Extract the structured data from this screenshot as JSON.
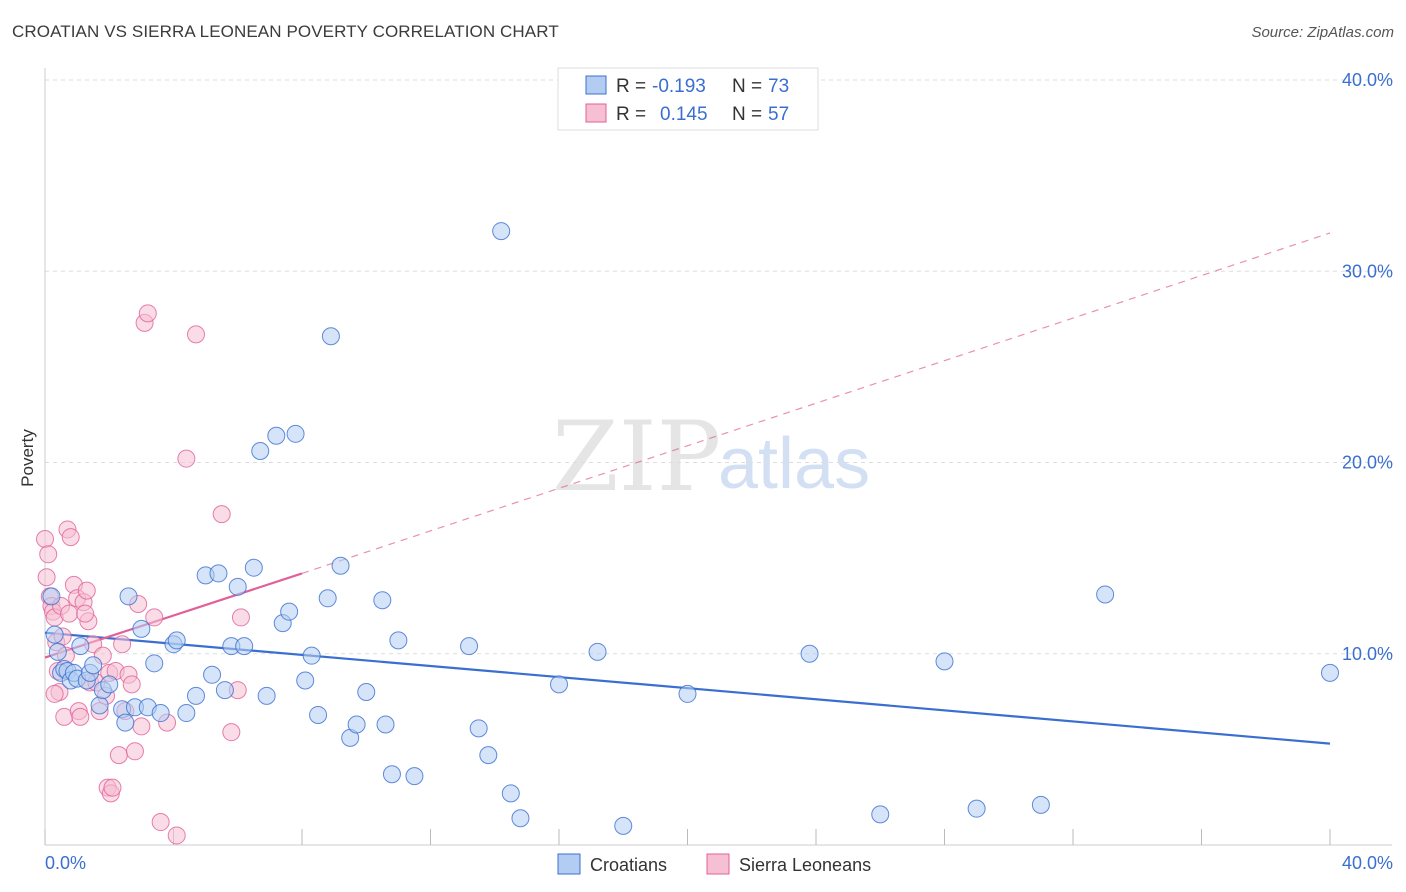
{
  "header": {
    "title": "CROATIAN VS SIERRA LEONEAN POVERTY CORRELATION CHART",
    "source": "Source: ZipAtlas.com"
  },
  "colors": {
    "blue": "#3a6fd0",
    "blue_fill": "#b3cdf2",
    "pink": "#e0609a",
    "pink_fill": "#f6bfd2",
    "grid": "#dddddd"
  },
  "stats": {
    "r_label": "R =",
    "n_label": "N =",
    "blue_r": "-0.193",
    "blue_n": "73",
    "pink_r": "0.145",
    "pink_n": "57"
  },
  "legend": {
    "blue_label": "Croatians",
    "pink_label": "Sierra Leoneans"
  },
  "watermark": {
    "zip": "ZIP",
    "atlas": "atlas"
  },
  "chart_data": {
    "type": "scatter",
    "title": "CROATIAN VS SIERRA LEONEAN POVERTY CORRELATION CHART",
    "xlabel": "",
    "ylabel": "Poverty",
    "xlim": [
      0,
      40
    ],
    "ylim": [
      0,
      40
    ],
    "x_tick_labels": [
      "0.0%",
      "40.0%"
    ],
    "y_ticks": [
      10,
      20,
      30,
      40
    ],
    "y_tick_labels": [
      "10.0%",
      "20.0%",
      "30.0%",
      "40.0%"
    ],
    "grid": true,
    "series": [
      {
        "name": "Croatians",
        "color": "#3a6fd0",
        "r": -0.193,
        "n": 73,
        "trend": {
          "x0": 0,
          "y0": 11.1,
          "x1": 40,
          "y1": 5.3,
          "dashed_from": null
        },
        "points": [
          [
            0.2,
            13.0
          ],
          [
            0.3,
            11.0
          ],
          [
            0.4,
            10.1
          ],
          [
            0.5,
            9.0
          ],
          [
            0.6,
            9.2
          ],
          [
            0.7,
            9.1
          ],
          [
            0.8,
            8.6
          ],
          [
            0.9,
            9.0
          ],
          [
            1.0,
            8.7
          ],
          [
            1.1,
            10.4
          ],
          [
            1.3,
            8.6
          ],
          [
            1.4,
            9.0
          ],
          [
            1.5,
            9.4
          ],
          [
            1.7,
            7.3
          ],
          [
            1.8,
            8.1
          ],
          [
            2.0,
            8.4
          ],
          [
            2.4,
            7.1
          ],
          [
            2.5,
            6.4
          ],
          [
            2.6,
            13.0
          ],
          [
            2.8,
            7.2
          ],
          [
            3.0,
            11.3
          ],
          [
            3.2,
            7.2
          ],
          [
            3.4,
            9.5
          ],
          [
            3.6,
            6.9
          ],
          [
            4.0,
            10.5
          ],
          [
            4.1,
            10.7
          ],
          [
            4.4,
            6.9
          ],
          [
            4.7,
            7.8
          ],
          [
            5.0,
            14.1
          ],
          [
            5.2,
            8.9
          ],
          [
            5.4,
            14.2
          ],
          [
            5.6,
            8.1
          ],
          [
            5.8,
            10.4
          ],
          [
            6.0,
            13.5
          ],
          [
            6.2,
            10.4
          ],
          [
            6.5,
            14.5
          ],
          [
            6.7,
            20.6
          ],
          [
            6.9,
            7.8
          ],
          [
            7.2,
            21.4
          ],
          [
            7.4,
            11.6
          ],
          [
            7.6,
            12.2
          ],
          [
            7.8,
            21.5
          ],
          [
            8.1,
            8.6
          ],
          [
            8.3,
            9.9
          ],
          [
            8.5,
            6.8
          ],
          [
            8.8,
            12.9
          ],
          [
            8.9,
            26.6
          ],
          [
            9.2,
            14.6
          ],
          [
            9.5,
            5.6
          ],
          [
            9.7,
            6.3
          ],
          [
            10.0,
            8.0
          ],
          [
            10.5,
            12.8
          ],
          [
            10.6,
            6.3
          ],
          [
            10.8,
            3.7
          ],
          [
            11.0,
            10.7
          ],
          [
            11.5,
            3.6
          ],
          [
            13.2,
            10.4
          ],
          [
            13.5,
            6.1
          ],
          [
            13.8,
            4.7
          ],
          [
            14.2,
            32.1
          ],
          [
            14.5,
            2.7
          ],
          [
            14.8,
            1.4
          ],
          [
            16.0,
            8.4
          ],
          [
            17.2,
            10.1
          ],
          [
            18.0,
            1.0
          ],
          [
            20.0,
            7.9
          ],
          [
            23.8,
            10.0
          ],
          [
            26.0,
            1.6
          ],
          [
            28.0,
            9.6
          ],
          [
            29.0,
            1.9
          ],
          [
            31.0,
            2.1
          ],
          [
            33.0,
            13.1
          ],
          [
            40.0,
            9.0
          ]
        ]
      },
      {
        "name": "Sierra Leoneans",
        "color": "#e0609a",
        "r": 0.145,
        "n": 57,
        "trend": {
          "x0": 0,
          "y0": 9.8,
          "x1": 8.0,
          "y1": 14.2,
          "dashed_to_x": 40,
          "dashed_to_y": 32.0
        },
        "points": [
          [
            0.0,
            16.0
          ],
          [
            0.1,
            15.2
          ],
          [
            0.15,
            13.0
          ],
          [
            0.2,
            12.5
          ],
          [
            0.25,
            12.2
          ],
          [
            0.3,
            11.9
          ],
          [
            0.35,
            10.6
          ],
          [
            0.4,
            9.1
          ],
          [
            0.45,
            8.0
          ],
          [
            0.5,
            12.5
          ],
          [
            0.55,
            10.9
          ],
          [
            0.6,
            6.7
          ],
          [
            0.65,
            9.9
          ],
          [
            0.7,
            16.5
          ],
          [
            0.75,
            12.1
          ],
          [
            0.8,
            16.1
          ],
          [
            0.9,
            13.6
          ],
          [
            1.0,
            12.9
          ],
          [
            1.05,
            7.0
          ],
          [
            1.1,
            6.7
          ],
          [
            1.2,
            12.7
          ],
          [
            1.3,
            13.3
          ],
          [
            1.35,
            11.7
          ],
          [
            1.4,
            8.5
          ],
          [
            1.5,
            10.5
          ],
          [
            1.6,
            8.5
          ],
          [
            1.7,
            7.0
          ],
          [
            1.8,
            9.9
          ],
          [
            1.9,
            7.8
          ],
          [
            1.95,
            3.0
          ],
          [
            2.0,
            9.0
          ],
          [
            2.05,
            2.7
          ],
          [
            2.1,
            3.0
          ],
          [
            2.2,
            9.1
          ],
          [
            2.3,
            4.7
          ],
          [
            2.4,
            10.5
          ],
          [
            2.5,
            7.0
          ],
          [
            2.6,
            8.9
          ],
          [
            2.7,
            8.4
          ],
          [
            2.8,
            4.9
          ],
          [
            2.9,
            12.6
          ],
          [
            3.0,
            6.2
          ],
          [
            3.1,
            27.3
          ],
          [
            3.2,
            27.8
          ],
          [
            3.4,
            11.9
          ],
          [
            3.6,
            1.2
          ],
          [
            3.8,
            6.4
          ],
          [
            4.1,
            0.5
          ],
          [
            4.4,
            20.2
          ],
          [
            4.7,
            26.7
          ],
          [
            5.5,
            17.3
          ],
          [
            5.8,
            5.9
          ],
          [
            6.0,
            8.1
          ],
          [
            6.1,
            11.9
          ],
          [
            0.05,
            14.0
          ],
          [
            0.3,
            7.9
          ],
          [
            1.25,
            12.1
          ]
        ]
      }
    ]
  }
}
